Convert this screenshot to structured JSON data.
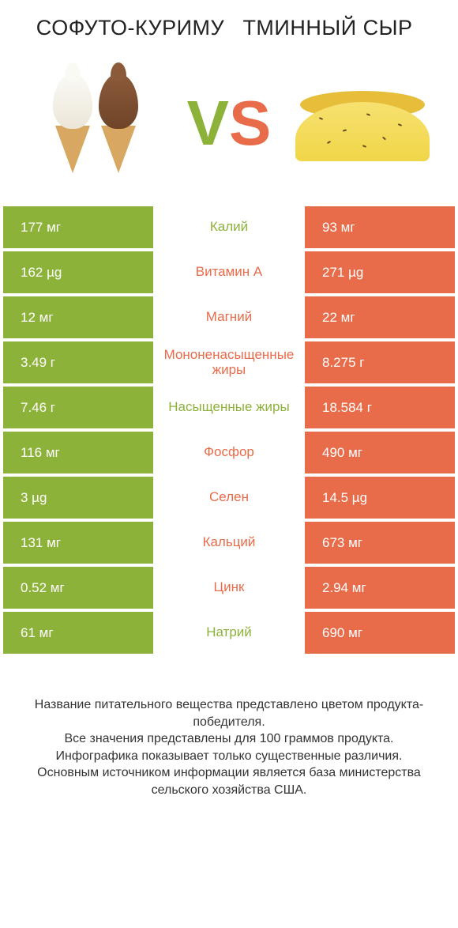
{
  "colors": {
    "left": "#8cb23a",
    "right": "#e86b4a",
    "vs_v": "#8cb23a",
    "vs_s": "#e86b4a",
    "background": "#ffffff",
    "text": "#222222"
  },
  "header": {
    "left_title": "СОФУТО-КУРИМУ",
    "right_title": "ТМИННЫЙ СЫР"
  },
  "vs": {
    "v": "V",
    "s": "S"
  },
  "rows": [
    {
      "left": "177 мг",
      "label": "Калий",
      "right": "93 мг",
      "winner": "left"
    },
    {
      "left": "162 µg",
      "label": "Витамин A",
      "right": "271 µg",
      "winner": "right"
    },
    {
      "left": "12 мг",
      "label": "Магний",
      "right": "22 мг",
      "winner": "right"
    },
    {
      "left": "3.49 г",
      "label": "Мононенасыщенные жиры",
      "right": "8.275 г",
      "winner": "right"
    },
    {
      "left": "7.46 г",
      "label": "Насыщенные жиры",
      "right": "18.584 г",
      "winner": "left"
    },
    {
      "left": "116 мг",
      "label": "Фосфор",
      "right": "490 мг",
      "winner": "right"
    },
    {
      "left": "3 µg",
      "label": "Селен",
      "right": "14.5 µg",
      "winner": "right"
    },
    {
      "left": "131 мг",
      "label": "Кальций",
      "right": "673 мг",
      "winner": "right"
    },
    {
      "left": "0.52 мг",
      "label": "Цинк",
      "right": "2.94 мг",
      "winner": "right"
    },
    {
      "left": "61 мг",
      "label": "Натрий",
      "right": "690 мг",
      "winner": "left"
    }
  ],
  "footnotes": [
    "Название питательного вещества представлено цветом продукта-победителя.",
    "Все значения представлены для 100 граммов продукта.",
    "Инфографика показывает только существенные различия.",
    "Основным источником информации является база министерства сельского хозяйства США."
  ]
}
